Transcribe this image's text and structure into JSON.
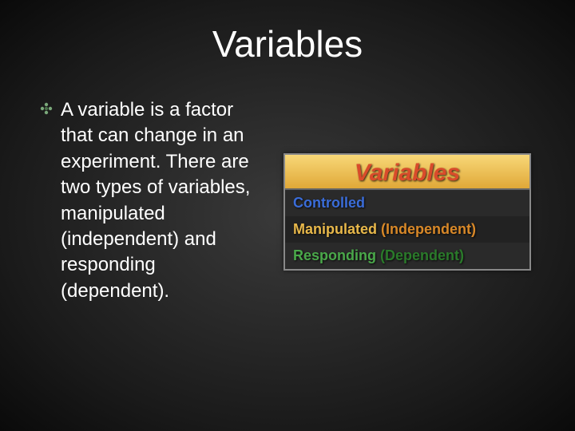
{
  "slide": {
    "title": "Variables",
    "bullet_icon": "flower-bullet",
    "body_text": "A variable is a factor that can change in an experiment. There are two types of variables, manipulated (independent) and responding (dependent).",
    "background_gradient": {
      "center": "#3a3a3a",
      "outer": "#0a0a0a"
    },
    "title_color": "#ffffff",
    "body_color": "#ffffff",
    "title_fontsize": 46,
    "body_fontsize": 24
  },
  "variables_card": {
    "header": "Variables",
    "header_color": "#d94b2b",
    "header_bg_start": "#f8d878",
    "header_bg_end": "#e0a838",
    "rows": [
      {
        "main": "Controlled",
        "main_color": "#3a6cd8",
        "paren": "",
        "paren_color": "",
        "bg": "#2a2a2a"
      },
      {
        "main": "Manipulated",
        "main_color": "#e8b84a",
        "paren": "(Independent)",
        "paren_color": "#d88828",
        "bg": "#222222"
      },
      {
        "main": "Responding",
        "main_color": "#4aa84a",
        "paren": "(Dependent)",
        "paren_color": "#2a7a2a",
        "bg": "#2a2a2a"
      }
    ],
    "border_color": "#888888"
  }
}
